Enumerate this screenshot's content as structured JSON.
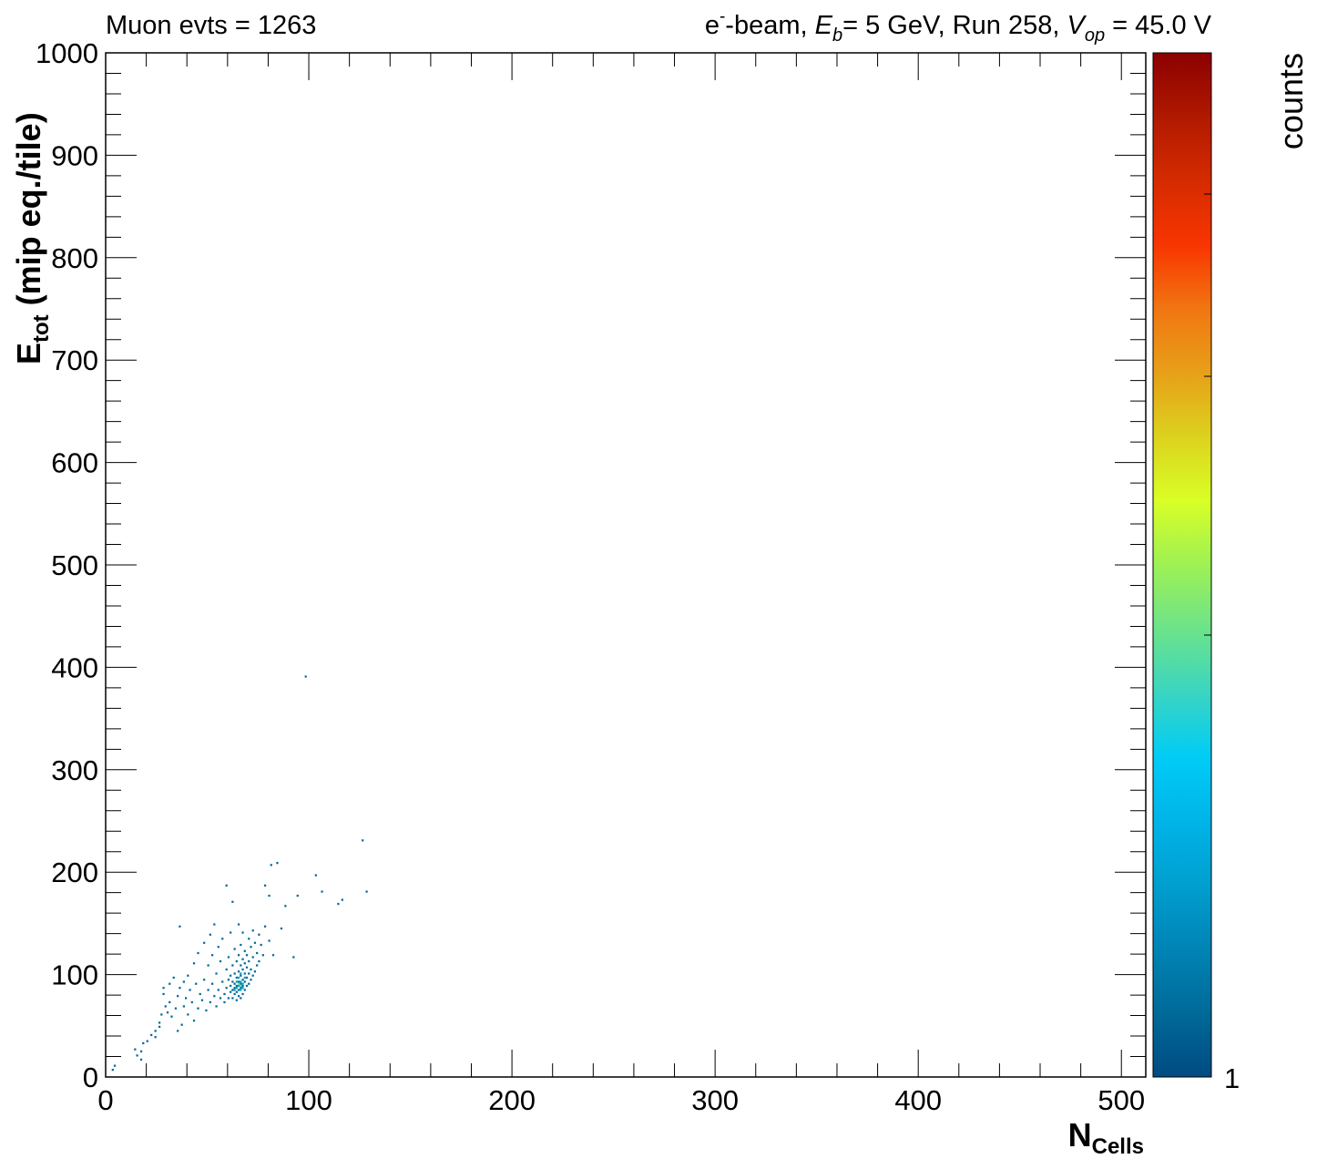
{
  "header": {
    "left_text": "Muon evts = 1263",
    "right_parts": {
      "e": "e",
      "e_sup": "-",
      "beam": "-beam, ",
      "eb_sym": "E",
      "eb_sub": "b",
      "eb_rest": "= 5 GeV, Run 258, ",
      "vop_sym": "V",
      "vop_sub": "op",
      "vop_rest": " = 45.0 V"
    }
  },
  "colorbar": {
    "label": "counts",
    "min_label": "1",
    "palette": [
      "#8c0000",
      "#b01900",
      "#d52b00",
      "#f83500",
      "#f17612",
      "#e7a018",
      "#dcd21e",
      "#d9ff26",
      "#9ef154",
      "#6ce38a",
      "#3ad5c1",
      "#00ccf6",
      "#00b4e8",
      "#009fcf",
      "#0084b5",
      "#006a99",
      "#004b82"
    ]
  },
  "chart_data": {
    "type": "heatmap",
    "title": "",
    "xlabel_main": "N",
    "xlabel_sub": "Cells",
    "ylabel_main": "E",
    "ylabel_sub": "tot",
    "ylabel_rest": " (mip eq./tile)",
    "xlim": [
      0,
      512
    ],
    "ylim": [
      0,
      1000
    ],
    "x_ticks": [
      0,
      100,
      200,
      300,
      400,
      500
    ],
    "y_ticks": [
      0,
      100,
      200,
      300,
      400,
      500,
      600,
      700,
      800,
      900,
      1000
    ],
    "x_tick_labels": [
      "0",
      "100",
      "200",
      "300",
      "400",
      "500"
    ],
    "y_tick_labels": [
      "0",
      "100",
      "200",
      "300",
      "400",
      "500",
      "600",
      "700",
      "800",
      "900",
      "1000"
    ],
    "bin_width_x": 1,
    "bin_height_y": 2,
    "cells": [
      [
        3,
        6,
        1
      ],
      [
        4,
        10,
        1
      ],
      [
        14,
        26,
        1
      ],
      [
        15,
        20,
        1
      ],
      [
        17,
        16,
        1
      ],
      [
        17,
        24,
        1
      ],
      [
        18,
        32,
        1
      ],
      [
        20,
        34,
        1
      ],
      [
        22,
        40,
        1
      ],
      [
        24,
        44,
        1
      ],
      [
        24,
        38,
        1
      ],
      [
        26,
        52,
        1
      ],
      [
        26,
        48,
        1
      ],
      [
        27,
        60,
        1
      ],
      [
        28,
        86,
        1
      ],
      [
        28,
        80,
        1
      ],
      [
        29,
        68,
        1
      ],
      [
        30,
        62,
        1
      ],
      [
        31,
        72,
        1
      ],
      [
        31,
        90,
        1
      ],
      [
        32,
        58,
        1
      ],
      [
        33,
        96,
        1
      ],
      [
        34,
        66,
        1
      ],
      [
        35,
        44,
        1
      ],
      [
        35,
        78,
        1
      ],
      [
        36,
        86,
        1
      ],
      [
        36,
        146,
        1
      ],
      [
        37,
        50,
        1
      ],
      [
        38,
        92,
        1
      ],
      [
        38,
        68,
        1
      ],
      [
        39,
        76,
        1
      ],
      [
        40,
        98,
        1
      ],
      [
        40,
        60,
        1
      ],
      [
        41,
        84,
        1
      ],
      [
        42,
        72,
        1
      ],
      [
        43,
        54,
        1
      ],
      [
        43,
        110,
        1
      ],
      [
        44,
        90,
        1
      ],
      [
        45,
        66,
        1
      ],
      [
        45,
        120,
        1
      ],
      [
        46,
        80,
        1
      ],
      [
        47,
        74,
        1
      ],
      [
        48,
        94,
        1
      ],
      [
        48,
        130,
        1
      ],
      [
        49,
        64,
        1
      ],
      [
        50,
        84,
        1
      ],
      [
        50,
        108,
        1
      ],
      [
        51,
        72,
        1
      ],
      [
        51,
        138,
        1
      ],
      [
        52,
        90,
        1
      ],
      [
        52,
        118,
        1
      ],
      [
        53,
        78,
        1
      ],
      [
        53,
        148,
        1
      ],
      [
        54,
        100,
        1
      ],
      [
        54,
        68,
        1
      ],
      [
        55,
        84,
        1
      ],
      [
        55,
        126,
        1
      ],
      [
        56,
        76,
        1
      ],
      [
        56,
        112,
        1
      ],
      [
        57,
        92,
        1
      ],
      [
        57,
        134,
        1
      ],
      [
        58,
        80,
        1
      ],
      [
        58,
        72,
        1
      ],
      [
        59,
        86,
        1
      ],
      [
        59,
        104,
        1
      ],
      [
        59,
        186,
        1
      ],
      [
        60,
        76,
        1
      ],
      [
        60,
        94,
        1
      ],
      [
        60,
        116,
        1
      ],
      [
        61,
        82,
        1
      ],
      [
        61,
        88,
        1
      ],
      [
        61,
        98,
        1
      ],
      [
        61,
        140,
        1
      ],
      [
        62,
        76,
        1
      ],
      [
        62,
        84,
        1
      ],
      [
        62,
        92,
        1
      ],
      [
        62,
        108,
        1
      ],
      [
        62,
        170,
        1
      ],
      [
        63,
        80,
        1
      ],
      [
        63,
        86,
        1
      ],
      [
        63,
        90,
        1
      ],
      [
        63,
        100,
        1
      ],
      [
        63,
        124,
        1
      ],
      [
        64,
        74,
        1
      ],
      [
        64,
        82,
        1
      ],
      [
        64,
        88,
        1
      ],
      [
        64,
        96,
        1
      ],
      [
        64,
        112,
        1
      ],
      [
        65,
        78,
        1
      ],
      [
        65,
        84,
        1
      ],
      [
        65,
        92,
        1
      ],
      [
        65,
        102,
        1
      ],
      [
        65,
        118,
        1
      ],
      [
        65,
        148,
        1
      ],
      [
        66,
        76,
        1
      ],
      [
        66,
        86,
        1
      ],
      [
        66,
        90,
        1
      ],
      [
        66,
        98,
        1
      ],
      [
        66,
        108,
        1
      ],
      [
        66,
        128,
        1
      ],
      [
        67,
        80,
        1
      ],
      [
        67,
        88,
        1
      ],
      [
        67,
        94,
        1
      ],
      [
        67,
        104,
        1
      ],
      [
        67,
        114,
        1
      ],
      [
        67,
        140,
        1
      ],
      [
        68,
        84,
        1
      ],
      [
        68,
        92,
        1
      ],
      [
        68,
        100,
        1
      ],
      [
        68,
        110,
        1
      ],
      [
        68,
        122,
        1
      ],
      [
        69,
        88,
        1
      ],
      [
        69,
        96,
        1
      ],
      [
        69,
        106,
        1
      ],
      [
        69,
        118,
        1
      ],
      [
        70,
        90,
        1
      ],
      [
        70,
        100,
        1
      ],
      [
        70,
        112,
        1
      ],
      [
        70,
        134,
        1
      ],
      [
        71,
        94,
        1
      ],
      [
        71,
        104,
        1
      ],
      [
        71,
        126,
        1
      ],
      [
        72,
        98,
        1
      ],
      [
        72,
        116,
        1
      ],
      [
        72,
        142,
        1
      ],
      [
        73,
        102,
        1
      ],
      [
        73,
        130,
        1
      ],
      [
        74,
        108,
        1
      ],
      [
        74,
        120,
        1
      ],
      [
        75,
        112,
        1
      ],
      [
        75,
        138,
        1
      ],
      [
        76,
        128,
        1
      ],
      [
        77,
        118,
        1
      ],
      [
        78,
        146,
        1
      ],
      [
        78,
        186,
        1
      ],
      [
        80,
        132,
        1
      ],
      [
        80,
        176,
        1
      ],
      [
        81,
        206,
        1
      ],
      [
        82,
        118,
        1
      ],
      [
        84,
        208,
        1
      ],
      [
        86,
        144,
        1
      ],
      [
        88,
        166,
        1
      ],
      [
        92,
        116,
        1
      ],
      [
        94,
        176,
        1
      ],
      [
        98,
        390,
        1
      ],
      [
        103,
        196,
        1
      ],
      [
        106,
        180,
        1
      ],
      [
        114,
        168,
        1
      ],
      [
        116,
        172,
        1
      ],
      [
        126,
        230,
        1
      ],
      [
        128,
        180,
        1
      ],
      [
        64,
        86,
        2
      ],
      [
        65,
        88,
        2
      ],
      [
        66,
        84,
        2
      ],
      [
        65,
        96,
        2
      ],
      [
        66,
        92,
        2
      ],
      [
        67,
        90,
        2
      ],
      [
        64,
        92,
        2
      ],
      [
        66,
        100,
        2
      ],
      [
        66,
        88,
        3
      ],
      [
        65,
        90,
        3
      ],
      [
        67,
        86,
        2
      ],
      [
        68,
        96,
        2
      ],
      [
        63,
        84,
        2
      ]
    ]
  }
}
